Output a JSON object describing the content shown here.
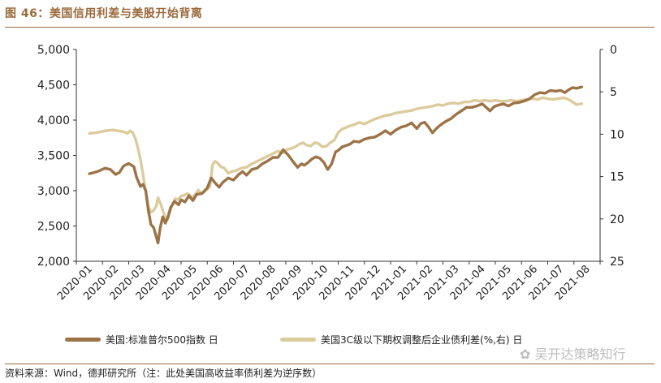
{
  "figure": {
    "title": "图 46：美国信用利差与美股开始背离",
    "source": "资料来源：Wind，德邦研究所（注：此处美国高收益率债利差为逆序数）",
    "watermark": "吴开达策略知行",
    "watermark_icon": "wechat-icon"
  },
  "colors": {
    "sp500": "#9c7347",
    "spread": "#dccb9c",
    "title": "#9a6a3c",
    "axis": "#333333"
  },
  "chart_data": {
    "type": "line",
    "title": "",
    "xlabel": "",
    "ylabel": "",
    "ylabel_right": "",
    "x_ticks": [
      "2020-01",
      "2020-02",
      "2020-03",
      "2020-04",
      "2020-05",
      "2020-06",
      "2020-07",
      "2020-08",
      "2020-09",
      "2020-10",
      "2020-11",
      "2020-12",
      "2021-01",
      "2021-02",
      "2021-03",
      "2021-04",
      "2021-05",
      "2021-06",
      "2021-07",
      "2021-08"
    ],
    "y_left": {
      "min": 2000,
      "max": 5000,
      "ticks": [
        2000,
        2500,
        3000,
        3500,
        4000,
        4500,
        5000
      ],
      "tick_labels": [
        "2,000",
        "2,500",
        "3,000",
        "3,500",
        "4,000",
        "4,500",
        "5,000"
      ]
    },
    "y_right": {
      "min": 0,
      "max": 25,
      "inverted": true,
      "ticks": [
        0,
        5,
        10,
        15,
        20,
        25
      ],
      "tick_labels": [
        "0",
        "5",
        "10",
        "15",
        "20",
        "25"
      ]
    },
    "legend_position": "bottom",
    "series": [
      {
        "name": "美国:标准普尔500指数 日",
        "axis": "left",
        "points": [
          [
            0,
            3240
          ],
          [
            0.3,
            3270
          ],
          [
            0.6,
            3320
          ],
          [
            0.8,
            3300
          ],
          [
            1.0,
            3230
          ],
          [
            1.15,
            3260
          ],
          [
            1.3,
            3350
          ],
          [
            1.5,
            3385
          ],
          [
            1.7,
            3340
          ],
          [
            1.8,
            3190
          ],
          [
            1.95,
            3060
          ],
          [
            2.05,
            3090
          ],
          [
            2.15,
            3000
          ],
          [
            2.25,
            2720
          ],
          [
            2.35,
            2520
          ],
          [
            2.45,
            2480
          ],
          [
            2.55,
            2350
          ],
          [
            2.62,
            2260
          ],
          [
            2.7,
            2470
          ],
          [
            2.8,
            2630
          ],
          [
            2.9,
            2540
          ],
          [
            3.0,
            2630
          ],
          [
            3.1,
            2760
          ],
          [
            3.25,
            2850
          ],
          [
            3.4,
            2800
          ],
          [
            3.5,
            2870
          ],
          [
            3.65,
            2840
          ],
          [
            3.8,
            2930
          ],
          [
            3.95,
            2860
          ],
          [
            4.1,
            2950
          ],
          [
            4.3,
            2960
          ],
          [
            4.5,
            3040
          ],
          [
            4.65,
            3180
          ],
          [
            4.8,
            3110
          ],
          [
            4.95,
            3050
          ],
          [
            5.1,
            3120
          ],
          [
            5.3,
            3180
          ],
          [
            5.5,
            3150
          ],
          [
            5.7,
            3230
          ],
          [
            5.85,
            3270
          ],
          [
            6.0,
            3220
          ],
          [
            6.2,
            3300
          ],
          [
            6.4,
            3320
          ],
          [
            6.6,
            3380
          ],
          [
            6.8,
            3420
          ],
          [
            7.0,
            3470
          ],
          [
            7.2,
            3470
          ],
          [
            7.4,
            3580
          ],
          [
            7.6,
            3500
          ],
          [
            7.8,
            3400
          ],
          [
            7.95,
            3330
          ],
          [
            8.1,
            3380
          ],
          [
            8.2,
            3360
          ],
          [
            8.35,
            3400
          ],
          [
            8.5,
            3450
          ],
          [
            8.65,
            3480
          ],
          [
            8.8,
            3460
          ],
          [
            8.95,
            3400
          ],
          [
            9.1,
            3300
          ],
          [
            9.25,
            3380
          ],
          [
            9.4,
            3550
          ],
          [
            9.5,
            3570
          ],
          [
            9.65,
            3620
          ],
          [
            9.8,
            3640
          ],
          [
            9.95,
            3660
          ],
          [
            10.1,
            3700
          ],
          [
            10.3,
            3690
          ],
          [
            10.5,
            3730
          ],
          [
            10.7,
            3750
          ],
          [
            10.9,
            3760
          ],
          [
            11.1,
            3800
          ],
          [
            11.3,
            3850
          ],
          [
            11.5,
            3800
          ],
          [
            11.7,
            3860
          ],
          [
            11.9,
            3900
          ],
          [
            12.1,
            3920
          ],
          [
            12.3,
            3960
          ],
          [
            12.5,
            3880
          ],
          [
            12.65,
            3950
          ],
          [
            12.8,
            3970
          ],
          [
            12.95,
            3900
          ],
          [
            13.1,
            3820
          ],
          [
            13.25,
            3880
          ],
          [
            13.4,
            3930
          ],
          [
            13.6,
            3980
          ],
          [
            13.8,
            4020
          ],
          [
            14.0,
            4080
          ],
          [
            14.2,
            4130
          ],
          [
            14.4,
            4180
          ],
          [
            14.6,
            4180
          ],
          [
            14.8,
            4200
          ],
          [
            15.0,
            4230
          ],
          [
            15.15,
            4180
          ],
          [
            15.3,
            4130
          ],
          [
            15.45,
            4190
          ],
          [
            15.6,
            4210
          ],
          [
            15.8,
            4230
          ],
          [
            16.0,
            4200
          ],
          [
            16.2,
            4240
          ],
          [
            16.4,
            4250
          ],
          [
            16.6,
            4270
          ],
          [
            16.8,
            4300
          ],
          [
            17.0,
            4360
          ],
          [
            17.2,
            4390
          ],
          [
            17.4,
            4380
          ],
          [
            17.6,
            4420
          ],
          [
            17.8,
            4410
          ],
          [
            18.0,
            4420
          ],
          [
            18.15,
            4390
          ],
          [
            18.3,
            4430
          ],
          [
            18.45,
            4460
          ],
          [
            18.6,
            4450
          ],
          [
            18.8,
            4470
          ]
        ]
      },
      {
        "name": "美国3C级以下期权调整后企业债利差(%,右) 日",
        "axis": "right",
        "points": [
          [
            0,
            9.9
          ],
          [
            0.3,
            9.8
          ],
          [
            0.6,
            9.6
          ],
          [
            0.9,
            9.5
          ],
          [
            1.1,
            9.6
          ],
          [
            1.3,
            9.7
          ],
          [
            1.45,
            9.9
          ],
          [
            1.55,
            9.6
          ],
          [
            1.65,
            9.8
          ],
          [
            1.75,
            10.5
          ],
          [
            1.85,
            11.6
          ],
          [
            1.95,
            13.0
          ],
          [
            2.05,
            14.8
          ],
          [
            2.15,
            16.8
          ],
          [
            2.25,
            18.6
          ],
          [
            2.35,
            19.2
          ],
          [
            2.45,
            19.0
          ],
          [
            2.55,
            18.5
          ],
          [
            2.62,
            17.5
          ],
          [
            2.72,
            18.2
          ],
          [
            2.82,
            19.2
          ],
          [
            2.9,
            19.8
          ],
          [
            2.98,
            20.1
          ],
          [
            3.08,
            19.0
          ],
          [
            3.18,
            18.2
          ],
          [
            3.28,
            17.6
          ],
          [
            3.38,
            17.7
          ],
          [
            3.5,
            17.3
          ],
          [
            3.62,
            17.2
          ],
          [
            3.75,
            17.0
          ],
          [
            3.88,
            17.4
          ],
          [
            4.0,
            17.3
          ],
          [
            4.15,
            16.6
          ],
          [
            4.3,
            17.0
          ],
          [
            4.45,
            16.6
          ],
          [
            4.6,
            16.2
          ],
          [
            4.7,
            13.6
          ],
          [
            4.8,
            13.2
          ],
          [
            4.9,
            13.4
          ],
          [
            5.0,
            13.8
          ],
          [
            5.15,
            14.0
          ],
          [
            5.3,
            14.6
          ],
          [
            5.45,
            14.4
          ],
          [
            5.6,
            14.3
          ],
          [
            5.8,
            14.0
          ],
          [
            6.0,
            13.9
          ],
          [
            6.2,
            13.5
          ],
          [
            6.4,
            13.2
          ],
          [
            6.6,
            12.9
          ],
          [
            6.8,
            12.6
          ],
          [
            7.0,
            12.3
          ],
          [
            7.2,
            12.0
          ],
          [
            7.4,
            12.2
          ],
          [
            7.55,
            11.8
          ],
          [
            7.7,
            11.7
          ],
          [
            7.85,
            11.5
          ],
          [
            8.0,
            11.2
          ],
          [
            8.15,
            11.0
          ],
          [
            8.3,
            11.3
          ],
          [
            8.45,
            11.4
          ],
          [
            8.6,
            11.0
          ],
          [
            8.75,
            11.1
          ],
          [
            8.9,
            11.5
          ],
          [
            9.05,
            11.4
          ],
          [
            9.2,
            11.0
          ],
          [
            9.35,
            10.7
          ],
          [
            9.5,
            9.8
          ],
          [
            9.65,
            9.4
          ],
          [
            9.8,
            9.2
          ],
          [
            9.95,
            9.0
          ],
          [
            10.1,
            8.9
          ],
          [
            10.3,
            8.6
          ],
          [
            10.5,
            8.8
          ],
          [
            10.7,
            8.5
          ],
          [
            10.9,
            8.2
          ],
          [
            11.1,
            8.0
          ],
          [
            11.3,
            7.8
          ],
          [
            11.5,
            7.7
          ],
          [
            11.7,
            7.5
          ],
          [
            11.9,
            7.4
          ],
          [
            12.1,
            7.3
          ],
          [
            12.3,
            7.2
          ],
          [
            12.5,
            7.0
          ],
          [
            12.7,
            6.9
          ],
          [
            12.9,
            6.8
          ],
          [
            13.1,
            6.7
          ],
          [
            13.3,
            6.5
          ],
          [
            13.5,
            6.6
          ],
          [
            13.7,
            6.4
          ],
          [
            13.9,
            6.3
          ],
          [
            14.1,
            6.4
          ],
          [
            14.3,
            6.2
          ],
          [
            14.5,
            6.2
          ],
          [
            14.7,
            6.0
          ],
          [
            14.9,
            6.1
          ],
          [
            15.1,
            6.0
          ],
          [
            15.3,
            6.1
          ],
          [
            15.5,
            6.0
          ],
          [
            15.7,
            6.1
          ],
          [
            15.9,
            6.1
          ],
          [
            16.1,
            6.0
          ],
          [
            16.3,
            6.1
          ],
          [
            16.5,
            6.0
          ],
          [
            16.7,
            5.9
          ],
          [
            16.9,
            5.8
          ],
          [
            17.1,
            5.9
          ],
          [
            17.3,
            5.7
          ],
          [
            17.5,
            5.8
          ],
          [
            17.7,
            5.9
          ],
          [
            17.9,
            5.8
          ],
          [
            18.1,
            5.7
          ],
          [
            18.3,
            5.9
          ],
          [
            18.45,
            6.2
          ],
          [
            18.6,
            6.5
          ],
          [
            18.8,
            6.4
          ]
        ]
      }
    ]
  }
}
